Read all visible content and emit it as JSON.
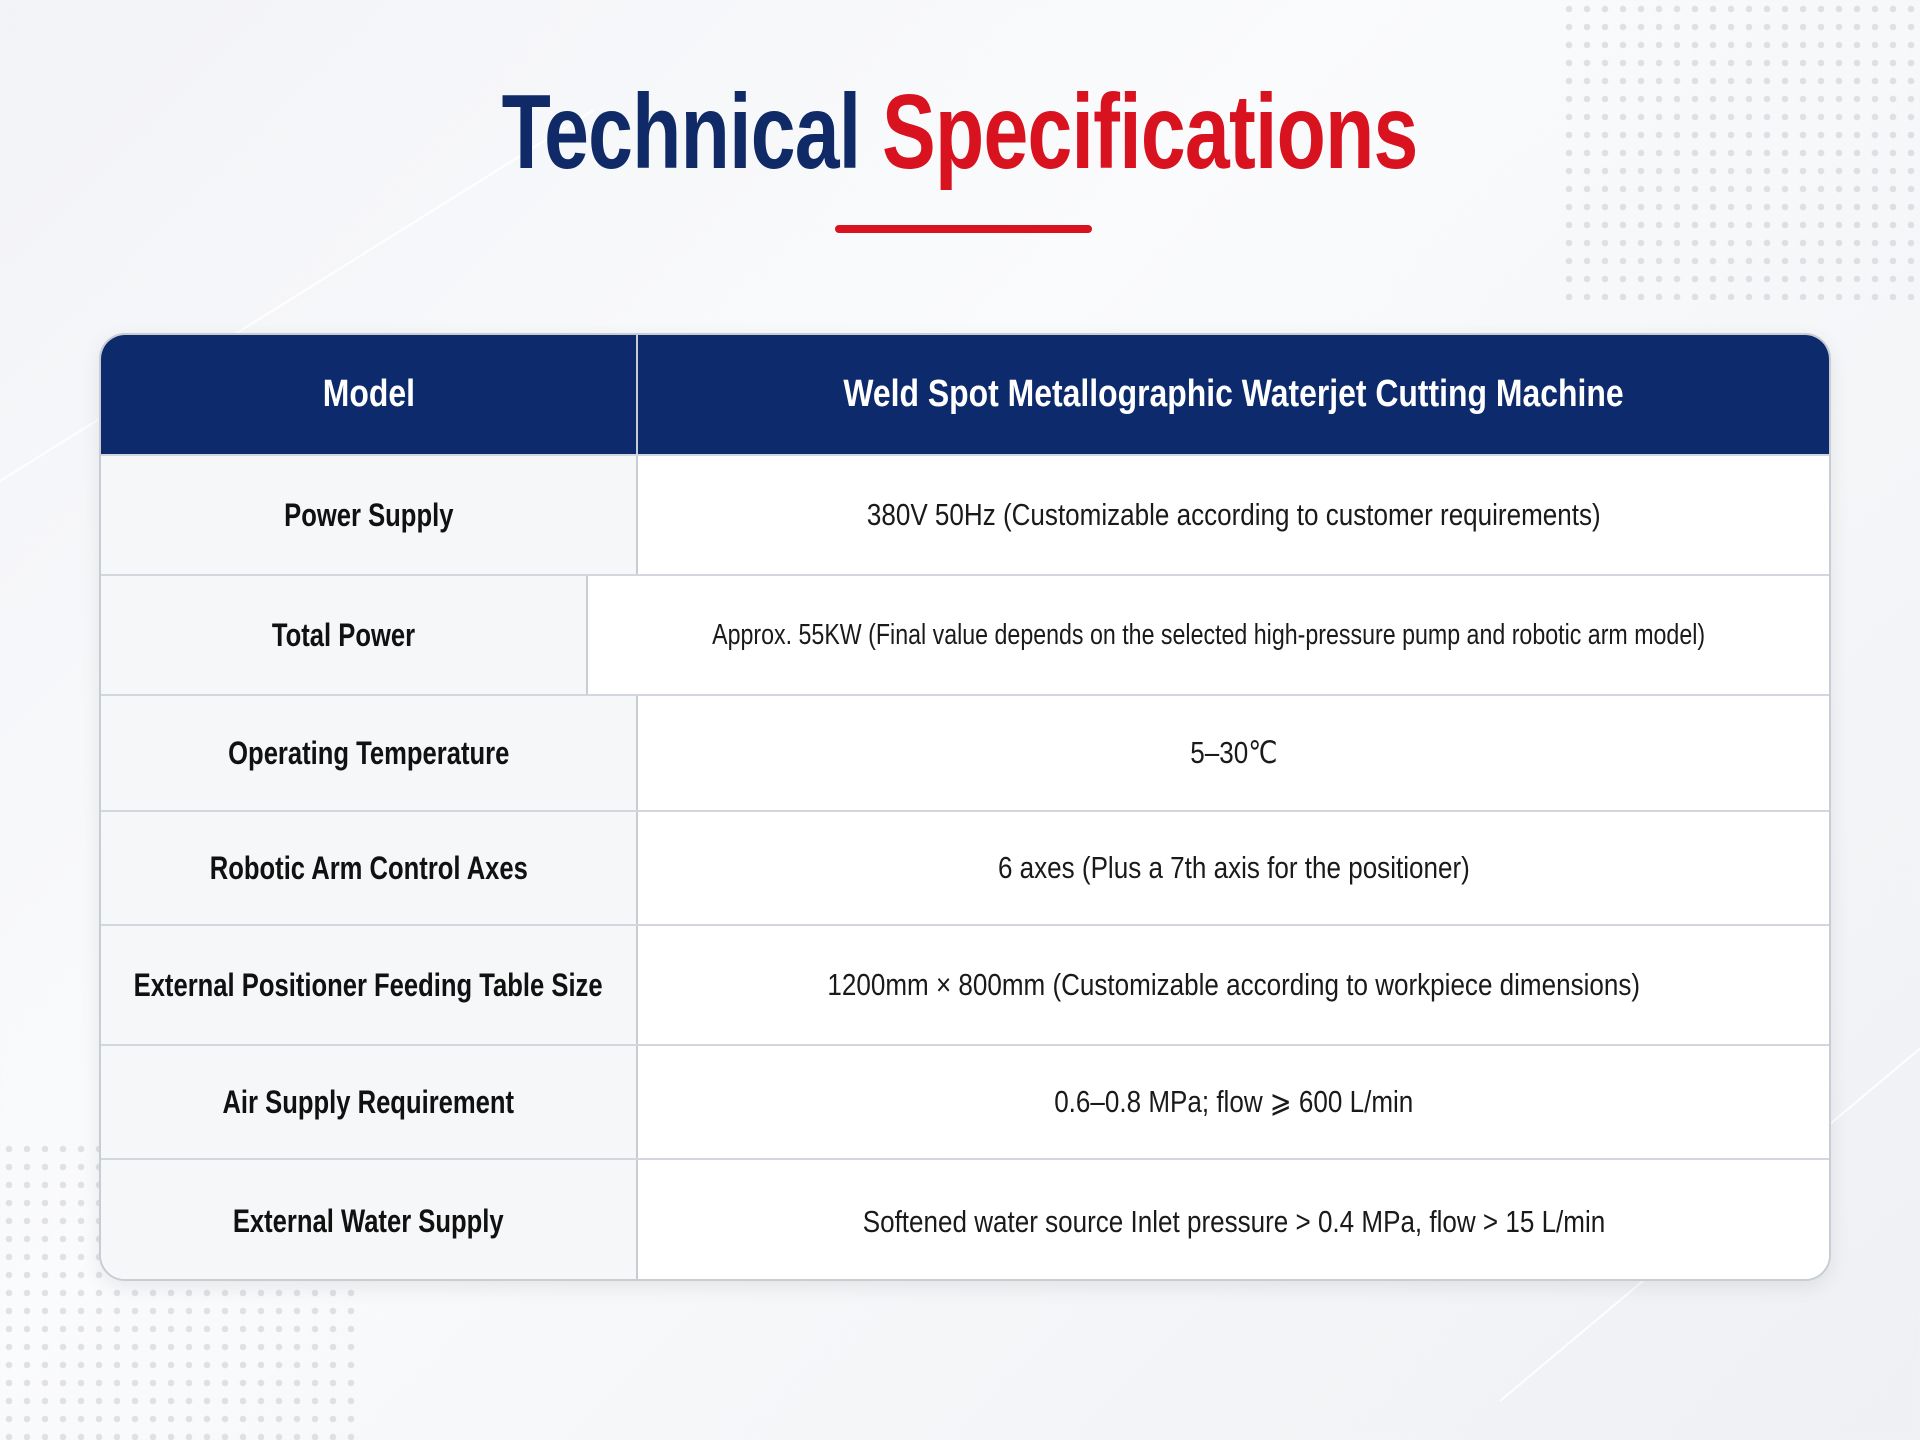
{
  "header": {
    "title_primary": "Technical",
    "title_accent": "Specifications"
  },
  "table": {
    "columns": [
      "Model",
      "Weld Spot Metallographic Waterjet Cutting Machine"
    ],
    "rows": [
      [
        "Power Supply",
        "380V 50Hz (Customizable according to customer requirements)"
      ],
      [
        "Total Power",
        "Approx. 55KW (Final value depends on the selected high-pressure pump and robotic arm model)"
      ],
      [
        "Operating Temperature",
        "5–30℃"
      ],
      [
        "Robotic Arm Control Axes",
        "6 axes (Plus a 7th axis for the positioner)"
      ],
      [
        "External Positioner Feeding Table Size",
        "1200mm × 800mm (Customizable according to workpiece dimensions)"
      ],
      [
        "Air Supply Requirement",
        "0.6–0.8 MPa; flow ⩾ 600 L/min"
      ],
      [
        "External Water Supply",
        "Softened water source Inlet pressure > 0.4 MPa, flow > 15 L/min"
      ]
    ]
  }
}
